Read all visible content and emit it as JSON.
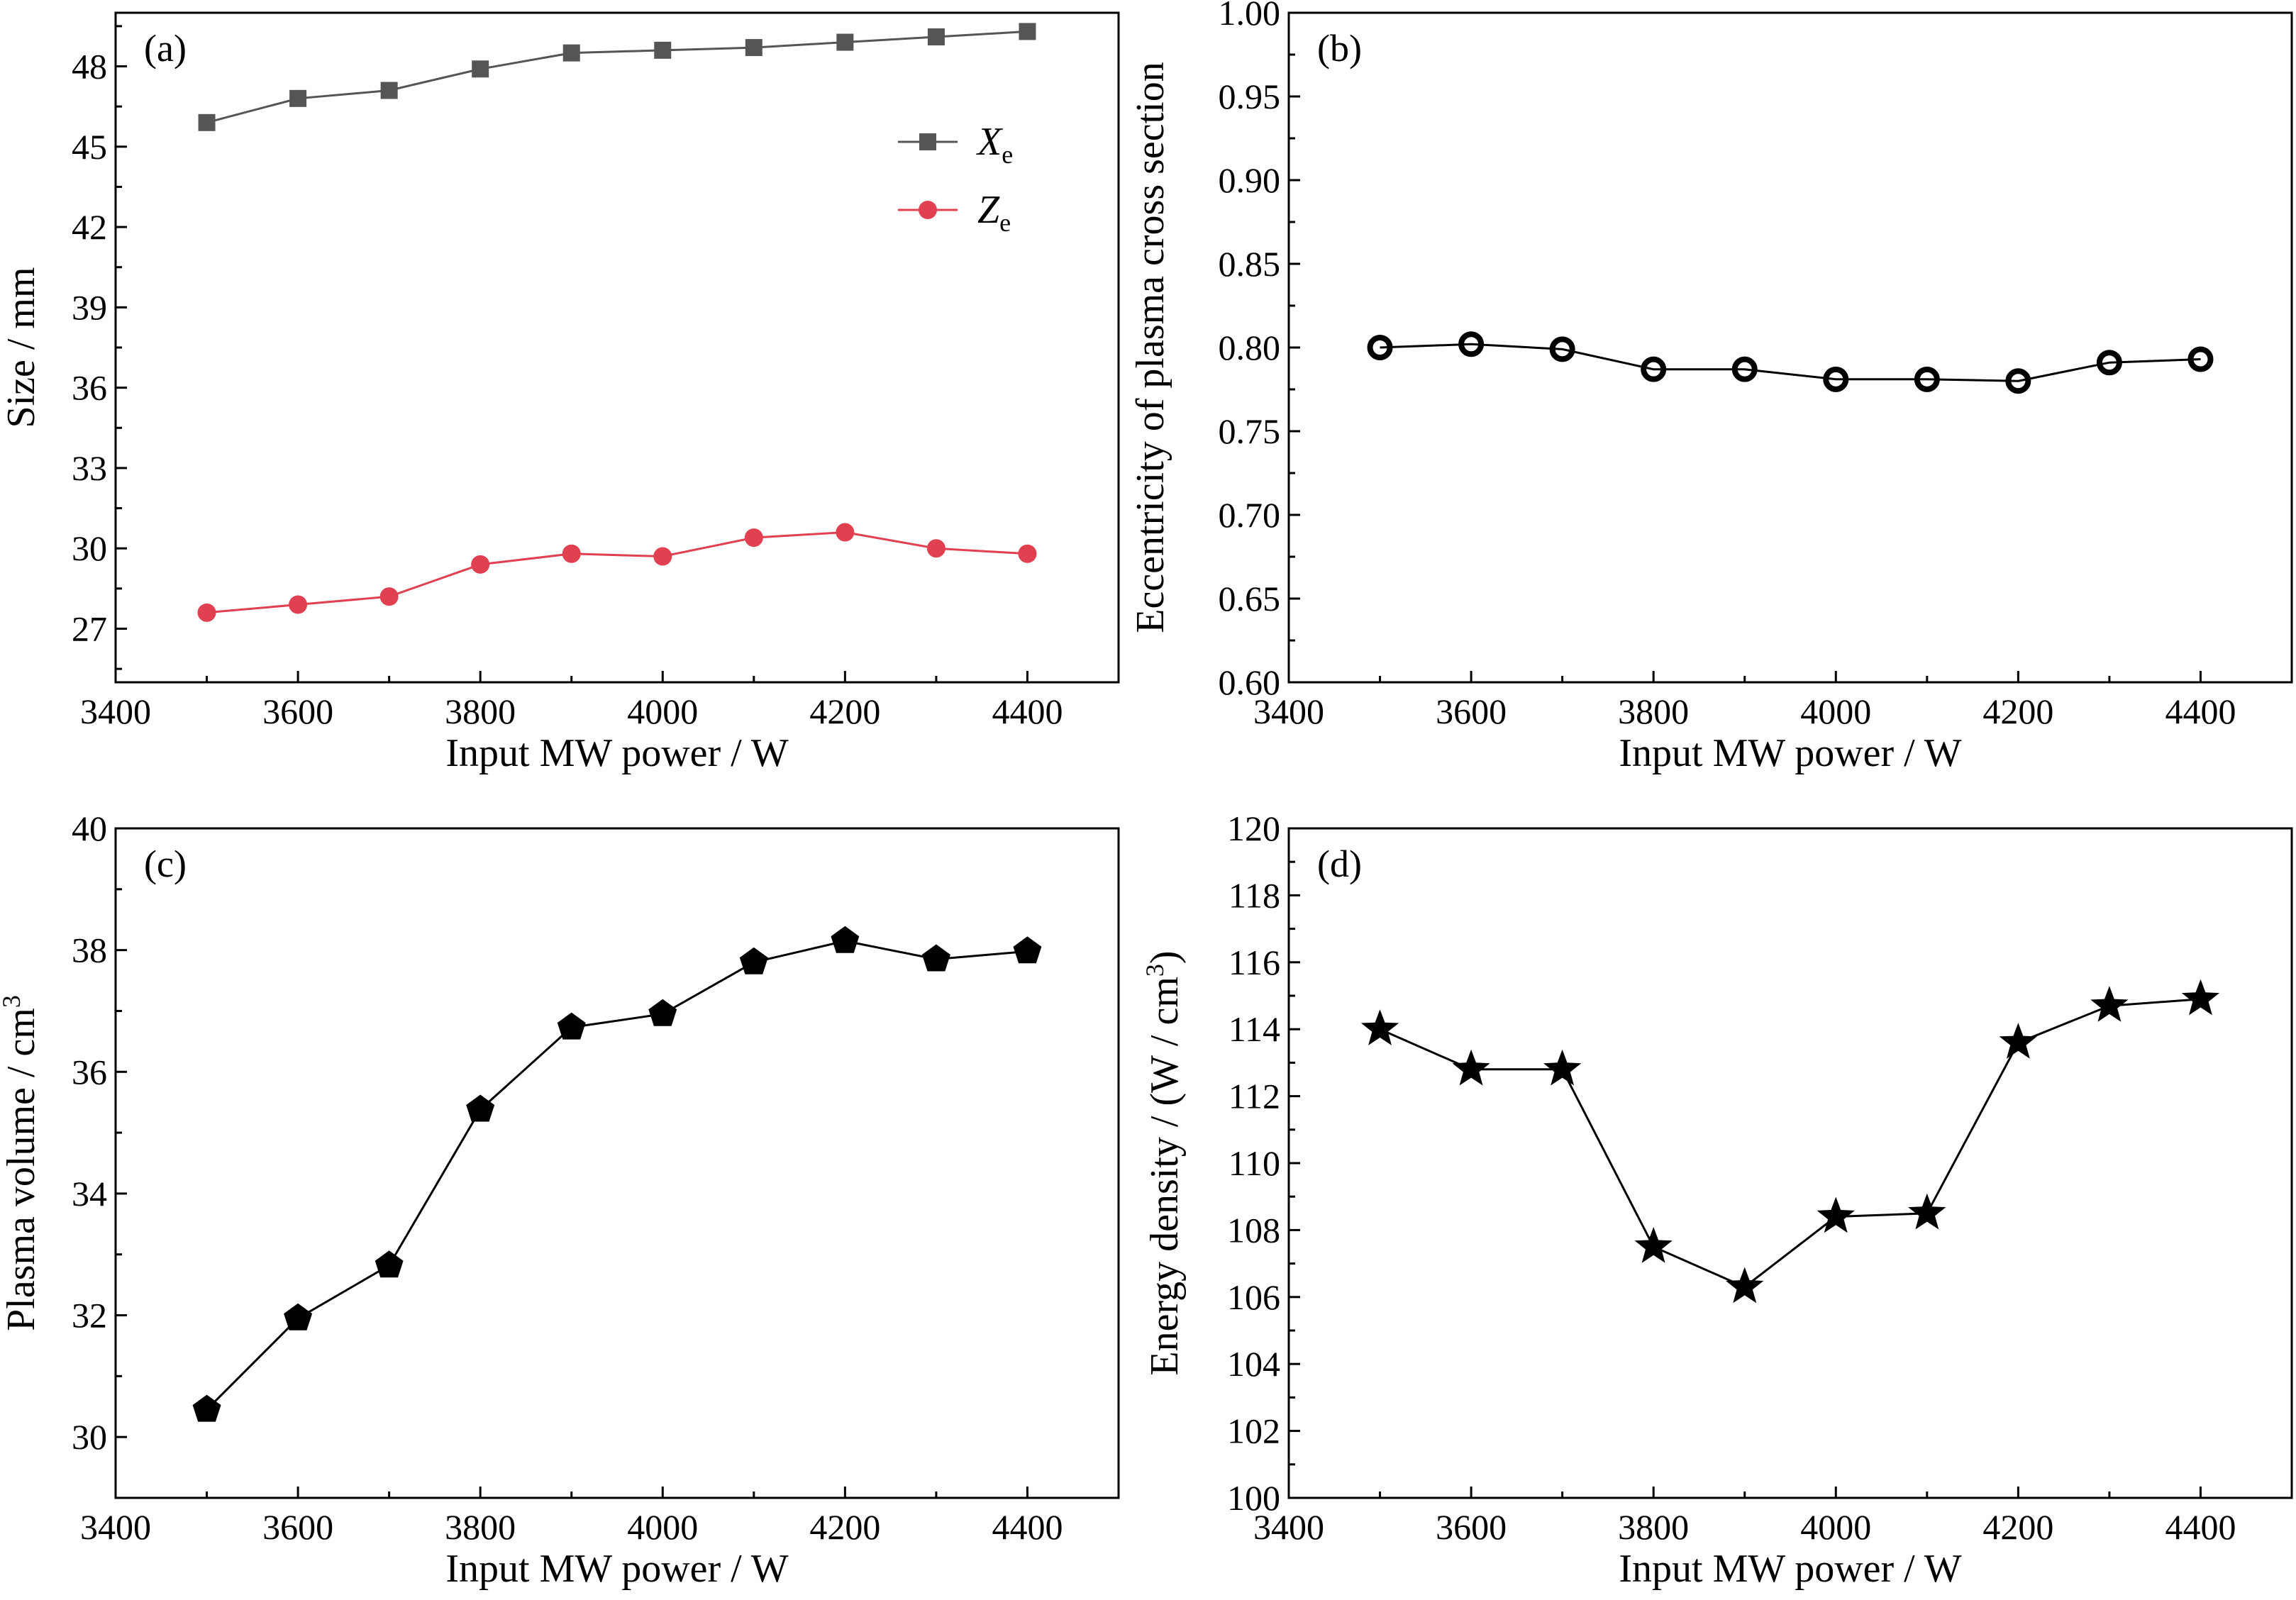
{
  "chart_data": [
    {
      "panel": "(a)",
      "type": "line",
      "xlabel": "Input MW power / W",
      "ylabel": "Size / mm",
      "xlim": [
        3400,
        4500
      ],
      "ylim": [
        25,
        50
      ],
      "xticks": [
        3400,
        3600,
        3800,
        4000,
        4200,
        4400
      ],
      "yticks": [
        27,
        30,
        33,
        36,
        39,
        42,
        45,
        48
      ],
      "legend": "top-right",
      "x": [
        3500,
        3600,
        3700,
        3800,
        3900,
        4000,
        4100,
        4200,
        4300,
        4400
      ],
      "series": [
        {
          "name": "X",
          "subscript": "e",
          "color": "#555555",
          "marker": "square",
          "values": [
            45.9,
            46.8,
            47.1,
            47.9,
            48.5,
            48.6,
            48.7,
            48.9,
            49.1,
            49.3
          ]
        },
        {
          "name": "Z",
          "subscript": "e",
          "color": "#e0404f",
          "marker": "circle",
          "values": [
            27.6,
            27.9,
            28.2,
            29.4,
            29.8,
            29.7,
            30.4,
            30.6,
            30.0,
            29.8
          ]
        }
      ]
    },
    {
      "panel": "(b)",
      "type": "line",
      "xlabel": "Input MW power / W",
      "ylabel": "Eccentricity of plasma cross section",
      "xlim": [
        3400,
        4500
      ],
      "ylim": [
        0.6,
        1.0
      ],
      "xticks": [
        3400,
        3600,
        3800,
        4000,
        4200,
        4400
      ],
      "yticks": [
        0.6,
        0.65,
        0.7,
        0.75,
        0.8,
        0.85,
        0.9,
        0.95,
        1.0
      ],
      "ytick_decimals": 2,
      "x": [
        3500,
        3600,
        3700,
        3800,
        3900,
        4000,
        4100,
        4200,
        4300,
        4400
      ],
      "series": [
        {
          "color": "#000000",
          "marker": "ring",
          "values": [
            0.8,
            0.802,
            0.799,
            0.787,
            0.787,
            0.781,
            0.781,
            0.78,
            0.791,
            0.793
          ]
        }
      ]
    },
    {
      "panel": "(c)",
      "type": "line",
      "xlabel": "Input MW power / W",
      "ylabel": "Plasma volume / cm",
      "ylabel_sup": "3",
      "xlim": [
        3400,
        4500
      ],
      "ylim": [
        29,
        40
      ],
      "xticks": [
        3400,
        3600,
        3800,
        4000,
        4200,
        4400
      ],
      "yticks": [
        30,
        32,
        34,
        36,
        38,
        40
      ],
      "x": [
        3500,
        3600,
        3700,
        3800,
        3900,
        4000,
        4100,
        4200,
        4300,
        4400
      ],
      "series": [
        {
          "color": "#000000",
          "marker": "pentagon",
          "values": [
            30.45,
            31.95,
            32.82,
            35.38,
            36.73,
            36.95,
            37.8,
            38.15,
            37.85,
            37.98
          ]
        }
      ]
    },
    {
      "panel": "(d)",
      "type": "line",
      "xlabel": "Input MW power / W",
      "ylabel": "Energy density / (W / cm",
      "ylabel_sup": "3",
      "ylabel_end": ")",
      "xlim": [
        3400,
        4500
      ],
      "ylim": [
        100,
        120
      ],
      "xticks": [
        3400,
        3600,
        3800,
        4000,
        4200,
        4400
      ],
      "yticks": [
        100,
        102,
        104,
        106,
        108,
        110,
        112,
        114,
        116,
        118,
        120
      ],
      "x": [
        3500,
        3600,
        3700,
        3800,
        3900,
        4000,
        4100,
        4200,
        4300,
        4400
      ],
      "series": [
        {
          "color": "#000000",
          "marker": "star",
          "values": [
            114.0,
            112.8,
            112.8,
            107.5,
            106.3,
            108.4,
            108.5,
            113.6,
            114.7,
            114.9
          ]
        }
      ]
    }
  ]
}
